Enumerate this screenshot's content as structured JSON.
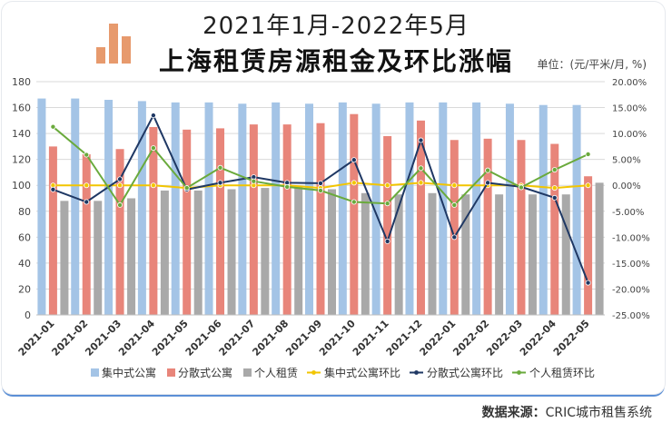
{
  "header": {
    "title_line1": "2021年1月-2022年5月",
    "title_line2": "上海租赁房源租金及环比涨幅",
    "unit": "单位：(元/平米/月, %)"
  },
  "footer": {
    "source_label": "数据来源：",
    "source_value": "CRIC城市租售系统"
  },
  "colors": {
    "bar_centralized": "#a4c4e6",
    "bar_dispersed": "#e8857a",
    "bar_personal": "#a9a9a9",
    "line_centralized": "#f2c500",
    "line_dispersed": "#1f3864",
    "line_personal": "#6aaa3c"
  },
  "chart_data": {
    "type": "bar",
    "categories": [
      "2021-01",
      "2021-02",
      "2021-03",
      "2021-04",
      "2021-05",
      "2021-06",
      "2021-07",
      "2021-08",
      "2021-09",
      "2021-10",
      "2021-11",
      "2021-12",
      "2022-01",
      "2022-02",
      "2022-03",
      "2022-04",
      "2022-05"
    ],
    "left_axis": {
      "ylim": [
        0,
        180
      ],
      "ticks": [
        0,
        20,
        40,
        60,
        80,
        100,
        120,
        140,
        160,
        180
      ]
    },
    "right_axis": {
      "ylim": [
        -25,
        20
      ],
      "ticks": [
        "20.00%",
        "15.00%",
        "10.00%",
        "5.00%",
        "0.00%",
        "-5.00%",
        "-10.00%",
        "-15.00%",
        "-20.00%",
        "-25.00%"
      ]
    },
    "grid": true,
    "legend_position": "bottom",
    "series": [
      {
        "name": "集中式公寓",
        "type": "bar",
        "axis": "left",
        "values": [
          167,
          167,
          166,
          165,
          164,
          164,
          163,
          164,
          163,
          164,
          163,
          164,
          164,
          164,
          163,
          162,
          162
        ]
      },
      {
        "name": "分散式公寓",
        "type": "bar",
        "axis": "left",
        "values": [
          130,
          124,
          128,
          145,
          143,
          144,
          147,
          147,
          148,
          155,
          138,
          150,
          135,
          136,
          135,
          132,
          107
        ]
      },
      {
        "name": "个人租赁",
        "type": "bar",
        "axis": "left",
        "values": [
          88,
          88,
          90,
          96,
          96,
          97,
          98,
          99,
          97,
          94,
          93,
          94,
          93,
          93,
          93,
          93,
          102
        ]
      },
      {
        "name": "集中式公寓环比",
        "type": "line",
        "axis": "right",
        "values": [
          0.0,
          0.0,
          0.0,
          0.0,
          -0.5,
          0.0,
          0.0,
          0.0,
          -0.5,
          0.5,
          0.0,
          0.5,
          0.0,
          0.0,
          0.0,
          -0.5,
          0.0
        ]
      },
      {
        "name": "分散式公寓环比",
        "type": "line",
        "axis": "right",
        "values": [
          -0.8,
          -3.2,
          1.2,
          13.5,
          -0.8,
          0.5,
          1.6,
          0.5,
          0.4,
          4.9,
          -10.8,
          8.7,
          -10.0,
          0.5,
          -0.3,
          -2.4,
          -18.8
        ]
      },
      {
        "name": "个人租赁环比",
        "type": "line",
        "axis": "right",
        "values": [
          11.3,
          5.9,
          -3.8,
          7.2,
          -0.5,
          3.4,
          0.8,
          -0.3,
          -1.0,
          -3.2,
          -3.5,
          3.3,
          -3.8,
          2.9,
          -0.4,
          3.0,
          6.0
        ]
      }
    ]
  }
}
